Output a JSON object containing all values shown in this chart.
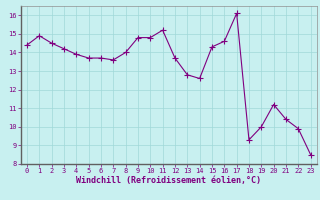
{
  "x": [
    0,
    1,
    2,
    3,
    4,
    5,
    6,
    7,
    8,
    9,
    10,
    11,
    12,
    13,
    14,
    15,
    16,
    17,
    18,
    19,
    20,
    21,
    22,
    23
  ],
  "y": [
    14.4,
    14.9,
    14.5,
    14.2,
    13.9,
    13.7,
    13.7,
    13.6,
    14.0,
    14.8,
    14.8,
    15.2,
    13.7,
    12.8,
    12.6,
    14.3,
    14.6,
    16.1,
    9.3,
    10.0,
    11.2,
    10.4,
    9.9,
    8.5
  ],
  "line_color": "#800080",
  "marker": "+",
  "marker_color": "#800080",
  "bg_color": "#c8f0f0",
  "grid_color": "#a0d8d8",
  "xlabel": "Windchill (Refroidissement éolien,°C)",
  "ylim": [
    8,
    16.5
  ],
  "xlim": [
    -0.5,
    23.5
  ],
  "yticks": [
    8,
    9,
    10,
    11,
    12,
    13,
    14,
    15,
    16
  ],
  "xticks": [
    0,
    1,
    2,
    3,
    4,
    5,
    6,
    7,
    8,
    9,
    10,
    11,
    12,
    13,
    14,
    15,
    16,
    17,
    18,
    19,
    20,
    21,
    22,
    23
  ],
  "tick_fontsize": 5.0,
  "label_fontsize": 6.0,
  "line_width": 0.8,
  "marker_size": 4
}
